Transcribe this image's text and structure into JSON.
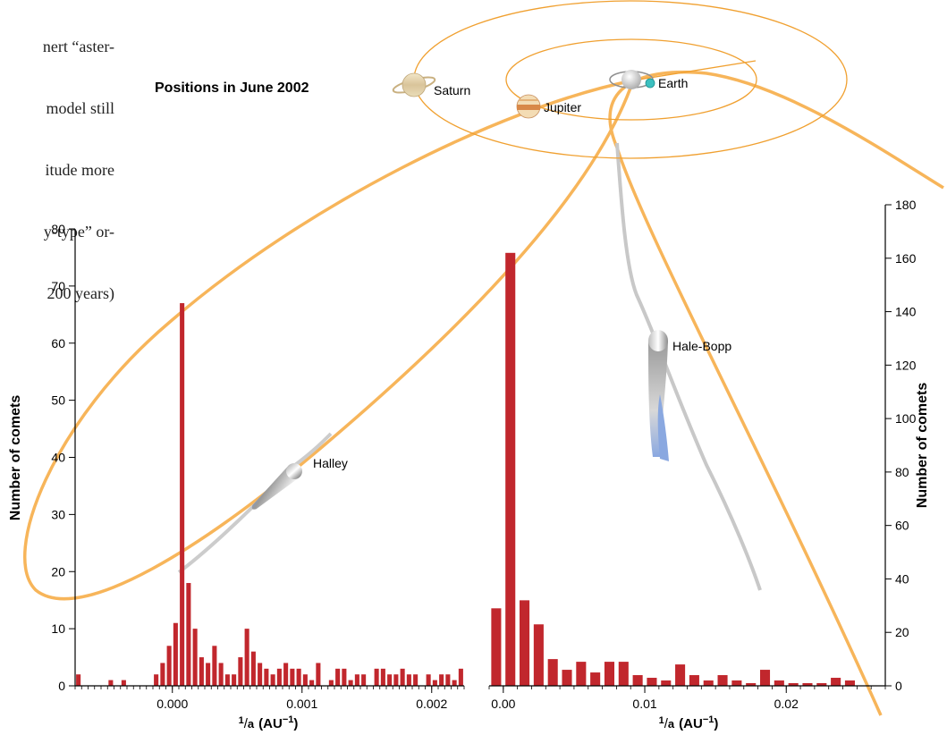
{
  "text_snippet": [
    "nert “aster-",
    " model still",
    "itude more",
    "y-type” or-",
    " 200 years)"
  ],
  "inset": {
    "title": "Positions in June 2002",
    "planets": [
      {
        "name": "Saturn",
        "icon": "saturn-icon"
      },
      {
        "name": "Jupiter",
        "icon": "jupiter-icon"
      },
      {
        "name": "Earth",
        "icon": "earth-icon"
      }
    ]
  },
  "comets": [
    {
      "name": "Halley",
      "icon": "comet-icon"
    },
    {
      "name": "Hale-Bopp",
      "icon": "comet-icon"
    }
  ],
  "colors": {
    "bar": "#c1272d",
    "orbit": "#f7b55a",
    "planet_orbit": "#f0a030",
    "earth": "#3cc0c0",
    "tail_blue": "#8aa8e0",
    "axis": "#000000"
  },
  "chart_data": [
    {
      "type": "bar",
      "title": "",
      "xlabel_main": "1",
      "xlabel_denom": "a",
      "xlabel_unit": "(AU",
      "xlabel_exp": "−1",
      "xlabel_close": ")",
      "ylabel": "Number of comets",
      "ylim": [
        0,
        80
      ],
      "y_ticks": [
        0,
        10,
        20,
        30,
        40,
        50,
        60,
        70,
        80
      ],
      "xlim": [
        -0.00075,
        0.00225
      ],
      "x_ticks": [
        0.0,
        0.001,
        0.002
      ],
      "x_tick_labels": [
        "0.000",
        "0.001",
        "0.002"
      ],
      "bin_width": 5e-05,
      "x": [
        -0.000725,
        -0.000675,
        -0.000625,
        -0.000575,
        -0.000525,
        -0.000475,
        -0.000425,
        -0.000375,
        -0.000325,
        -0.000275,
        -0.000225,
        -0.000175,
        -0.000125,
        -7.5e-05,
        -2.5e-05,
        2.5e-05,
        7.5e-05,
        0.000125,
        0.000175,
        0.000225,
        0.000275,
        0.000325,
        0.000375,
        0.000425,
        0.000475,
        0.000525,
        0.000575,
        0.000625,
        0.000675,
        0.000725,
        0.000775,
        0.000825,
        0.000875,
        0.000925,
        0.000975,
        0.001025,
        0.001075,
        0.001125,
        0.001175,
        0.001225,
        0.001275,
        0.001325,
        0.001375,
        0.001425,
        0.001475,
        0.001525,
        0.001575,
        0.001625,
        0.001675,
        0.001725,
        0.001775,
        0.001825,
        0.001875,
        0.001925,
        0.001975,
        0.002025,
        0.002075,
        0.002125,
        0.002175,
        0.002225
      ],
      "values": [
        2,
        0,
        0,
        0,
        0,
        1,
        0,
        1,
        0,
        0,
        0,
        0,
        2,
        4,
        7,
        11,
        67,
        18,
        10,
        5,
        4,
        7,
        4,
        2,
        2,
        5,
        10,
        6,
        4,
        3,
        2,
        3,
        4,
        3,
        3,
        2,
        1,
        4,
        0,
        1,
        3,
        3,
        1,
        2,
        2,
        0,
        3,
        3,
        2,
        2,
        3,
        2,
        2,
        0,
        2,
        1,
        2,
        2,
        1,
        3
      ]
    },
    {
      "type": "bar",
      "title": "",
      "xlabel_main": "1",
      "xlabel_denom": "a",
      "xlabel_unit": "(AU",
      "xlabel_exp": "−1",
      "xlabel_close": ")",
      "ylabel": "Number of comets",
      "ylim": [
        0,
        180
      ],
      "y_ticks": [
        0,
        20,
        40,
        60,
        80,
        100,
        120,
        140,
        160,
        180
      ],
      "xlim": [
        -0.001,
        0.027
      ],
      "x_ticks": [
        0.0,
        0.01,
        0.02
      ],
      "x_tick_labels": [
        "0.00",
        "0.01",
        "0.02"
      ],
      "bin_width": 0.001,
      "x": [
        -0.0005,
        0.0005,
        0.0015,
        0.0025,
        0.0035,
        0.0045,
        0.0055,
        0.0065,
        0.0075,
        0.0085,
        0.0095,
        0.0105,
        0.0115,
        0.0125,
        0.0135,
        0.0145,
        0.0155,
        0.0165,
        0.0175,
        0.0185,
        0.0195,
        0.0205,
        0.0215,
        0.0225,
        0.0235,
        0.0245
      ],
      "values": [
        29,
        162,
        32,
        23,
        10,
        6,
        9,
        5,
        9,
        9,
        4,
        3,
        2,
        8,
        4,
        2,
        4,
        2,
        1,
        6,
        2,
        1,
        1,
        1,
        3,
        2
      ]
    }
  ]
}
